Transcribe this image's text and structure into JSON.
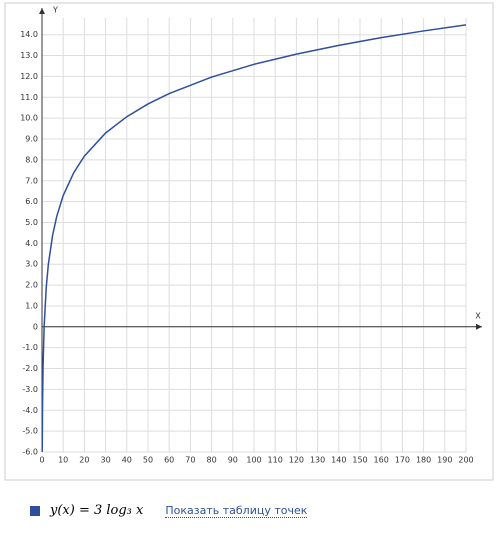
{
  "chart_data": {
    "type": "line",
    "x_label": "X",
    "y_label": "Y",
    "x": [
      0.112,
      0.25,
      0.5,
      1,
      2,
      3,
      5,
      7,
      10,
      15,
      20,
      30,
      40,
      50,
      60,
      80,
      100,
      120,
      140,
      160,
      180,
      200
    ],
    "series": [
      {
        "name": "y(x) = 3 log₃ x",
        "color": "#2e4f9e",
        "values": [
          -5.98,
          -3.79,
          -1.89,
          0,
          1.89,
          3,
          4.39,
          5.31,
          6.29,
          7.39,
          8.18,
          9.29,
          10.07,
          10.68,
          11.18,
          11.97,
          12.58,
          13.07,
          13.49,
          13.86,
          14.18,
          14.47
        ]
      }
    ],
    "xlim": [
      0,
      200
    ],
    "ylim": [
      -6,
      14.8
    ],
    "xticks": [
      0,
      10,
      20,
      30,
      40,
      50,
      60,
      70,
      80,
      90,
      100,
      110,
      120,
      130,
      140,
      150,
      160,
      170,
      180,
      190,
      200
    ],
    "yticks": [
      {
        "value": -6,
        "label": "-6.0"
      },
      {
        "value": -5,
        "label": "-5.0"
      },
      {
        "value": -4,
        "label": "-4.0"
      },
      {
        "value": -3,
        "label": "-3.0"
      },
      {
        "value": -2,
        "label": "-2.0"
      },
      {
        "value": -1,
        "label": "-1.0"
      },
      0,
      {
        "value": 1,
        "label": "1.0"
      },
      {
        "value": 2,
        "label": "2.0"
      },
      {
        "value": 3,
        "label": "3.0"
      },
      {
        "value": 4,
        "label": "4.0"
      },
      {
        "value": 5,
        "label": "5.0"
      },
      {
        "value": 6,
        "label": "6.0"
      },
      {
        "value": 7,
        "label": "7.0"
      },
      {
        "value": 8,
        "label": "8.0"
      },
      {
        "value": 9,
        "label": "9.0"
      },
      {
        "value": 10,
        "label": "10.0"
      },
      {
        "value": 11,
        "label": "11.0"
      },
      {
        "value": 12,
        "label": "12.0"
      },
      {
        "value": 13,
        "label": "13.0"
      },
      {
        "value": 14,
        "label": "14.0"
      }
    ],
    "grid": true,
    "legend_link": "Показать таблицу точек"
  }
}
